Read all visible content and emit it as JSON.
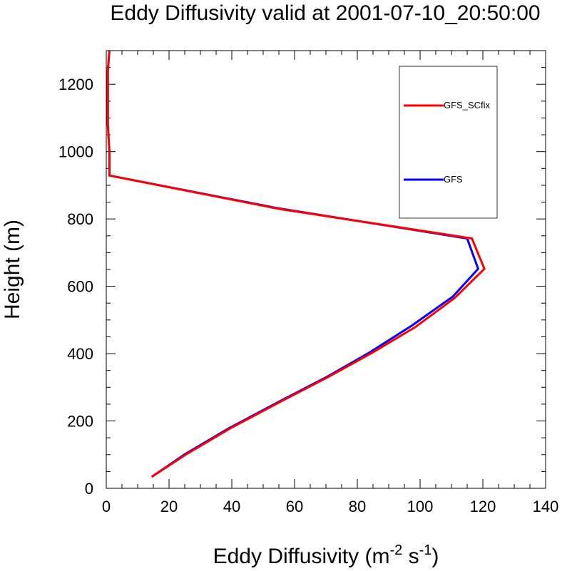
{
  "chart_data": {
    "type": "line",
    "title": "Eddy Diffusivity valid at 2001-07-10_20:50:00",
    "xlabel": "Eddy Diffusivity (m",
    "xlabel_sup1": "-2",
    "xlabel_mid": " s",
    "xlabel_sup2": "-1",
    "xlabel_end": ")",
    "ylabel": "Height (m)",
    "xlim": [
      0,
      140
    ],
    "ylim": [
      0,
      1300
    ],
    "xticks": [
      0,
      20,
      40,
      60,
      80,
      100,
      120,
      140
    ],
    "yticks": [
      0,
      200,
      400,
      600,
      800,
      1000,
      1200
    ],
    "xtick_labels": [
      "0",
      "20",
      "40",
      "60",
      "80",
      "100",
      "120",
      "140"
    ],
    "ytick_labels": [
      "0",
      "200",
      "400",
      "600",
      "800",
      "1000",
      "1200"
    ],
    "grid": false,
    "legend_position": "top-right",
    "series": [
      {
        "name": "GFS_SCfix",
        "color": "#ff0000",
        "x": [
          14.5,
          25.5,
          39.5,
          55.5,
          71.0,
          85.0,
          98.5,
          111.0,
          120.5,
          116.5,
          55.0,
          1.0,
          1.0,
          0.5,
          0.5,
          0.5,
          1.0
        ],
        "y": [
          34,
          101,
          178,
          257,
          332,
          404,
          479,
          565,
          652,
          742,
          830,
          929,
          1000,
          1080,
          1160,
          1240,
          1300
        ]
      },
      {
        "name": "GFS",
        "color": "#0000ff",
        "x": [
          14.5,
          25.0,
          39.0,
          55.0,
          70.5,
          84.0,
          97.5,
          110.5,
          118.5,
          115.0,
          54.0,
          1.0,
          1.0,
          0.5,
          0.5,
          0.5,
          1.0
        ],
        "y": [
          34,
          101,
          178,
          257,
          332,
          404,
          484,
          570,
          652,
          742,
          833,
          929,
          1000,
          1080,
          1160,
          1240,
          1300
        ]
      }
    ]
  }
}
